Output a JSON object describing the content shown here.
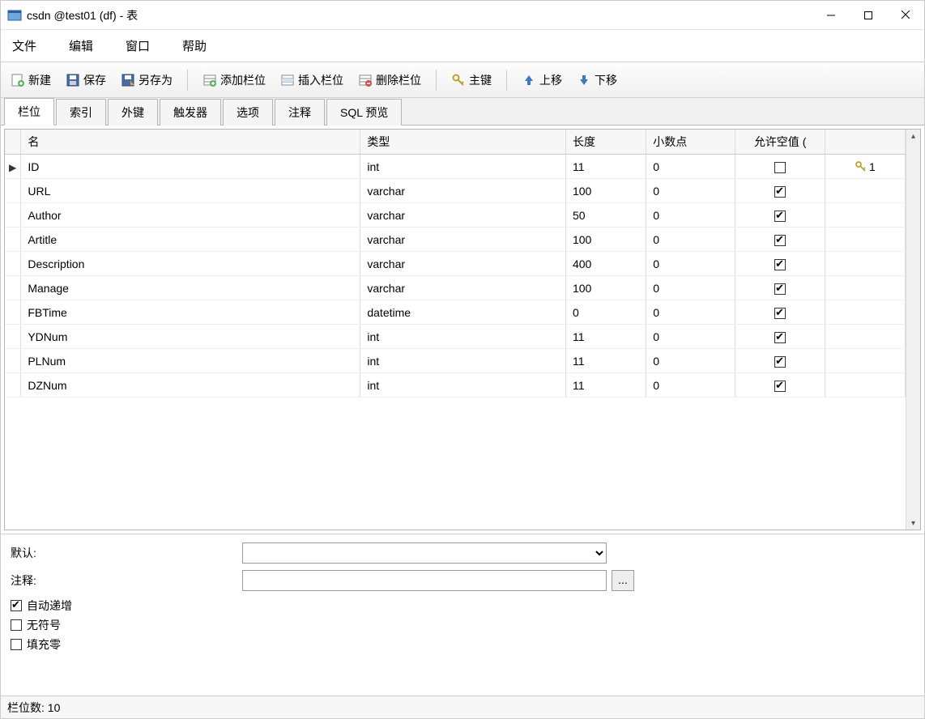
{
  "window": {
    "title": "csdn @test01 (df) - 表"
  },
  "menu": {
    "file": "文件",
    "edit": "编辑",
    "window": "窗口",
    "help": "帮助"
  },
  "toolbar": {
    "new": "新建",
    "save": "保存",
    "saveas": "另存为",
    "addfield": "添加栏位",
    "insertfield": "插入栏位",
    "deletefield": "删除栏位",
    "primarykey": "主键",
    "moveup": "上移",
    "movedown": "下移"
  },
  "tabs": {
    "items": [
      {
        "label": "栏位",
        "active": true
      },
      {
        "label": "索引",
        "active": false
      },
      {
        "label": "外键",
        "active": false
      },
      {
        "label": "触发器",
        "active": false
      },
      {
        "label": "选项",
        "active": false
      },
      {
        "label": "注释",
        "active": false
      },
      {
        "label": "SQL 预览",
        "active": false
      }
    ]
  },
  "columns": {
    "name": "名",
    "type": "类型",
    "length": "长度",
    "decimals": "小数点",
    "allownull": "允许空值 ("
  },
  "rows": [
    {
      "marker": "▶",
      "name": "ID",
      "type": "int",
      "length": "11",
      "decimals": "0",
      "allownull": false,
      "iskey": true,
      "keynum": "1"
    },
    {
      "marker": "",
      "name": "URL",
      "type": "varchar",
      "length": "100",
      "decimals": "0",
      "allownull": true,
      "iskey": false,
      "keynum": ""
    },
    {
      "marker": "",
      "name": "Author",
      "type": "varchar",
      "length": "50",
      "decimals": "0",
      "allownull": true,
      "iskey": false,
      "keynum": ""
    },
    {
      "marker": "",
      "name": "Artitle",
      "type": "varchar",
      "length": "100",
      "decimals": "0",
      "allownull": true,
      "iskey": false,
      "keynum": ""
    },
    {
      "marker": "",
      "name": "Description",
      "type": "varchar",
      "length": "400",
      "decimals": "0",
      "allownull": true,
      "iskey": false,
      "keynum": ""
    },
    {
      "marker": "",
      "name": "Manage",
      "type": "varchar",
      "length": "100",
      "decimals": "0",
      "allownull": true,
      "iskey": false,
      "keynum": ""
    },
    {
      "marker": "",
      "name": "FBTime",
      "type": "datetime",
      "length": "0",
      "decimals": "0",
      "allownull": true,
      "iskey": false,
      "keynum": ""
    },
    {
      "marker": "",
      "name": "YDNum",
      "type": "int",
      "length": "11",
      "decimals": "0",
      "allownull": true,
      "iskey": false,
      "keynum": ""
    },
    {
      "marker": "",
      "name": "PLNum",
      "type": "int",
      "length": "11",
      "decimals": "0",
      "allownull": true,
      "iskey": false,
      "keynum": ""
    },
    {
      "marker": "",
      "name": "DZNum",
      "type": "int",
      "length": "11",
      "decimals": "0",
      "allownull": true,
      "iskey": false,
      "keynum": ""
    }
  ],
  "props": {
    "default_label": "默认:",
    "comment_label": "注释:",
    "auto_increment": "自动递增",
    "unsigned": "无符号",
    "zerofill": "填充零",
    "default_value": "",
    "comment_value": "",
    "auto_checked": true,
    "unsigned_checked": false,
    "zerofill_checked": false,
    "ellipsis": "..."
  },
  "statusbar": {
    "text": "栏位数: 10"
  }
}
